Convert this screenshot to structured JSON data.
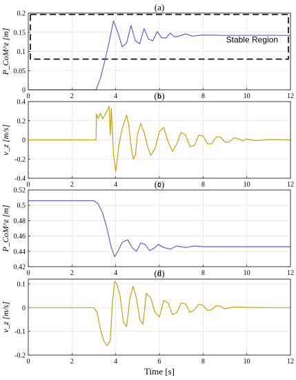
{
  "chart_data": [
    {
      "type": "line",
      "title": "(a)",
      "ylabel": "P_CoM^z [m]",
      "xlim": [
        0,
        12
      ],
      "ylim": [
        0,
        0.2
      ],
      "yticks": [
        "0",
        "0.05",
        "0.1",
        "0.15",
        "0.2"
      ],
      "xticks": [
        "0",
        "2",
        "4",
        "6",
        "8",
        "10",
        "12"
      ],
      "grid": true,
      "series": [
        {
          "color": "#5b63c9",
          "x": [
            0,
            3.1,
            3.3,
            3.5,
            3.7,
            3.9,
            4.1,
            4.3,
            4.5,
            4.7,
            4.9,
            5.1,
            5.3,
            5.5,
            5.7,
            5.9,
            6.1,
            6.3,
            6.5,
            6.7,
            6.9,
            7.2,
            7.5,
            8,
            9,
            10,
            11,
            12
          ],
          "y": [
            0,
            0,
            0.03,
            0.075,
            0.125,
            0.18,
            0.15,
            0.112,
            0.122,
            0.168,
            0.128,
            0.12,
            0.16,
            0.132,
            0.128,
            0.152,
            0.136,
            0.135,
            0.148,
            0.138,
            0.14,
            0.146,
            0.14,
            0.143,
            0.142,
            0.142,
            0.142,
            0.142
          ]
        }
      ],
      "annotation": {
        "label": "Stable Region",
        "y_range": [
          0.08,
          0.2
        ]
      }
    },
    {
      "type": "line",
      "title": "(b)",
      "ylabel": "v_z [m/s]",
      "xlim": [
        0,
        12
      ],
      "ylim": [
        -0.4,
        0.4
      ],
      "yticks": [
        "-0.4",
        "-0.2",
        "0",
        "0.2",
        "0.4"
      ],
      "xticks": [
        "0",
        "2",
        "4",
        "6",
        "8",
        "10",
        "12"
      ],
      "grid": true,
      "series": [
        {
          "color": "#c8a010",
          "x": [
            0,
            3.1,
            3.12,
            3.2,
            3.3,
            3.4,
            3.5,
            3.6,
            3.7,
            3.75,
            3.8,
            3.9,
            4.0,
            4.05,
            4.15,
            4.3,
            4.5,
            4.6,
            4.7,
            4.8,
            4.9,
            5.0,
            5.15,
            5.3,
            5.45,
            5.6,
            5.8,
            6.0,
            6.2,
            6.4,
            6.6,
            6.8,
            7.0,
            7.2,
            7.4,
            7.6,
            7.8,
            8.0,
            8.2,
            8.4,
            8.6,
            8.8,
            9.0,
            9.2,
            9.4,
            9.6,
            9.8,
            10.0,
            10.4,
            11,
            12
          ],
          "y": [
            0,
            0,
            0.27,
            0.22,
            0.28,
            0.22,
            0.26,
            0.3,
            0.35,
            0.05,
            0.33,
            -0.15,
            -0.33,
            -0.25,
            -0.05,
            0.12,
            0.26,
            0.15,
            -0.05,
            -0.2,
            -0.16,
            0.06,
            0.17,
            0.08,
            -0.06,
            -0.16,
            -0.09,
            0.09,
            0.13,
            -0.02,
            -0.12,
            -0.04,
            0.08,
            0.05,
            -0.07,
            -0.06,
            0.05,
            0.04,
            -0.04,
            -0.04,
            0.03,
            0.03,
            -0.025,
            -0.02,
            0.02,
            0.015,
            -0.01,
            0.01,
            -0.008,
            0.004,
            0
          ]
        }
      ]
    },
    {
      "type": "line",
      "title": "(c)",
      "ylabel": "P_CoM^z [m]",
      "xlim": [
        0,
        12
      ],
      "ylim": [
        0.42,
        0.52
      ],
      "yticks": [
        "0.42",
        "0.44",
        "0.46",
        "0.48",
        "0.5",
        "0.52"
      ],
      "xticks": [
        "0",
        "2",
        "4",
        "6",
        "8",
        "10",
        "12"
      ],
      "grid": true,
      "series": [
        {
          "color": "#5b63c9",
          "x": [
            0,
            3.0,
            3.2,
            3.4,
            3.6,
            3.8,
            3.95,
            4.1,
            4.3,
            4.55,
            4.75,
            4.95,
            5.15,
            5.35,
            5.55,
            5.75,
            5.95,
            6.2,
            6.5,
            6.8,
            7.2,
            7.6,
            8,
            9,
            10,
            11,
            12
          ],
          "y": [
            0.506,
            0.506,
            0.502,
            0.49,
            0.47,
            0.445,
            0.433,
            0.44,
            0.452,
            0.455,
            0.445,
            0.44,
            0.451,
            0.449,
            0.441,
            0.444,
            0.449,
            0.445,
            0.443,
            0.447,
            0.445,
            0.447,
            0.446,
            0.446,
            0.446,
            0.446,
            0.446
          ]
        }
      ]
    },
    {
      "type": "line",
      "title": "(d)",
      "ylabel": "v_z [m/s]",
      "xlim": [
        0,
        12
      ],
      "ylim": [
        -0.2,
        0.12
      ],
      "yticks": [
        "-0.2",
        "-0.1",
        "0",
        "0.1"
      ],
      "xticks": [
        "0",
        "2",
        "4",
        "6",
        "8",
        "10",
        "12"
      ],
      "xlabel": "Time   [s]",
      "grid": true,
      "series": [
        {
          "color": "#c8a010",
          "x": [
            0,
            3.0,
            3.15,
            3.3,
            3.45,
            3.6,
            3.75,
            3.85,
            3.95,
            4.05,
            4.2,
            4.35,
            4.5,
            4.65,
            4.8,
            4.95,
            5.1,
            5.25,
            5.4,
            5.6,
            5.8,
            6.0,
            6.2,
            6.4,
            6.6,
            6.8,
            7.0,
            7.2,
            7.4,
            7.6,
            7.8,
            8.0,
            8.2,
            8.4,
            8.6,
            8.8,
            9.0,
            9.4,
            10,
            11,
            12
          ],
          "y": [
            0,
            0,
            -0.02,
            -0.09,
            -0.14,
            -0.16,
            -0.14,
            0.02,
            0.11,
            0.1,
            0.05,
            -0.06,
            -0.08,
            0.04,
            0.09,
            0.04,
            -0.05,
            -0.07,
            0.06,
            0.04,
            -0.02,
            -0.04,
            0.03,
            0.02,
            -0.03,
            -0.02,
            0.02,
            0.015,
            -0.02,
            -0.01,
            0.015,
            0.01,
            -0.012,
            -0.008,
            0.008,
            0.006,
            -0.005,
            0.003,
            0.001,
            0,
            0
          ]
        }
      ]
    }
  ]
}
